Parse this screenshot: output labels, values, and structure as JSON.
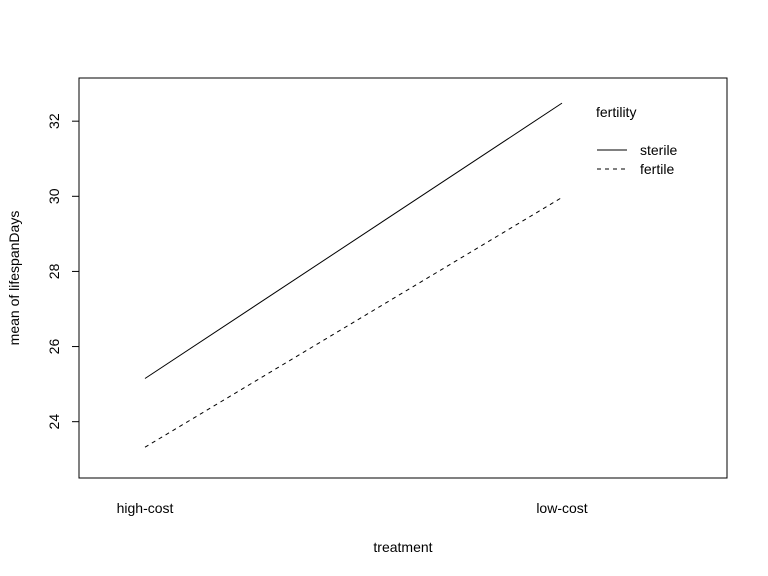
{
  "chart_data": {
    "type": "line",
    "title": "",
    "xlabel": "treatment",
    "ylabel": "mean of  lifespanDays",
    "categories": [
      "high-cost",
      "low-cost"
    ],
    "series": [
      {
        "name": "sterile",
        "values": [
          25.15,
          32.48
        ],
        "line_style": "solid",
        "color": "#000000"
      },
      {
        "name": "fertile",
        "values": [
          23.32,
          29.97
        ],
        "line_style": "dashed",
        "color": "#000000"
      }
    ],
    "ylim": [
      22.9,
      32.75
    ],
    "y_ticks": [
      24,
      26,
      28,
      30,
      32
    ],
    "legend": {
      "title": "fertility",
      "position": "top-right"
    },
    "grid": false
  }
}
